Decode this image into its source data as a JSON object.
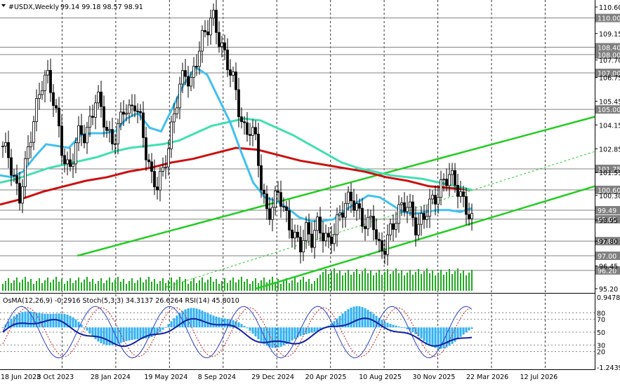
{
  "header": {
    "symbol": "#USDX,Weekly",
    "ohlc": "99.14 99.18 98.57 98.91"
  },
  "indicators_label": "OsMA(12,26,9) -0.2916  Stoch(5,3,3) 34.3137 26.6264  RSI(14) 45.8010",
  "colors": {
    "bull_body": "#ffffff",
    "bear_body": "#000000",
    "ema_fast": "#40c0f0",
    "ema_mid": "#40e0b0",
    "ema_slow": "#cc1010",
    "channel": "#22cc22",
    "volume": "#22aa22",
    "osma": "#30b0f0",
    "rsi": "#1020a0",
    "stoch": "#c02020",
    "level_line": "#808080"
  },
  "chart_data": [
    {
      "type": "candlestick",
      "title": "#USDX,Weekly",
      "ylim": [
        95.2,
        110.6
      ],
      "price_axis_ticks": [
        "110.60",
        "109.15",
        "107.70",
        "106.75",
        "105.45",
        "104.15",
        "102.85",
        "101.55",
        "100.30",
        "98.95",
        "97.80",
        "96.45",
        "95.20"
      ],
      "level_labels": [
        "110.00",
        "108.40",
        "108.00",
        "107.00",
        "105.00",
        "101.75",
        "100.60",
        "99.49",
        "99.00",
        "97.80",
        "97.00",
        "96.20"
      ],
      "x_tick_labels": [
        "18 Jun 2023",
        "8 Oct 2023",
        "28 Jan 2024",
        "19 May 2024",
        "8 Sep 2024",
        "29 Dec 2024",
        "20 Apr 2025",
        "10 Aug 2025",
        "30 Nov 2025",
        "22 Mar 2026",
        "12 Jul 2026"
      ],
      "close_path": [
        103.0,
        102.5,
        101.2,
        100.1,
        101.8,
        103.5,
        105.0,
        106.4,
        106.9,
        105.8,
        104.2,
        102.3,
        101.6,
        102.8,
        104.0,
        103.4,
        104.6,
        105.8,
        104.9,
        103.6,
        103.2,
        104.1,
        105.2,
        104.8,
        105.4,
        104.3,
        102.6,
        101.2,
        100.9,
        101.6,
        102.9,
        104.7,
        106.2,
        107.1,
        106.3,
        107.6,
        108.8,
        109.4,
        110.2,
        109.0,
        108.1,
        107.3,
        106.4,
        104.6,
        103.6,
        104.1,
        103.1,
        100.4,
        99.2,
        99.8,
        100.6,
        99.4,
        98.6,
        97.9,
        97.6,
        98.4,
        97.9,
        98.7,
        98.2,
        97.7,
        98.3,
        99.2,
        99.8,
        100.2,
        99.7,
        99.0,
        98.6,
        99.2,
        97.4,
        97.3,
        98.2,
        98.9,
        99.6,
        99.9,
        99.4,
        98.4,
        99.0,
        99.6,
        100.1,
        100.4,
        101.2,
        101.4,
        101.0,
        100.2,
        99.6,
        98.9
      ],
      "ema_fast_path": [
        101.4,
        101.3,
        101.6,
        102.4,
        103.1,
        103.0,
        102.9,
        103.6,
        103.7,
        103.7,
        103.8,
        104.5,
        104.8,
        104.0,
        103.8,
        105.1,
        106.4,
        107.3,
        106.9,
        105.6,
        104.3,
        102.6,
        101.0,
        100.2,
        100.0,
        99.6,
        99.1,
        98.9,
        98.9,
        99.0,
        99.5,
        99.9,
        100.3,
        100.2,
        99.8,
        99.4,
        99.3,
        99.4,
        99.5,
        99.5,
        99.4,
        99.6
      ],
      "ema_mid_path": [
        101.0,
        101.2,
        101.5,
        101.8,
        102.0,
        102.2,
        102.4,
        102.7,
        102.9,
        103.0,
        103.1,
        103.3,
        103.7,
        104.1,
        104.3,
        104.5,
        104.4,
        104.0,
        103.6,
        103.1,
        102.6,
        102.1,
        101.8,
        101.6,
        101.4,
        101.3,
        101.2,
        101.0,
        100.8,
        100.6
      ],
      "ema_slow_path": [
        99.8,
        100.1,
        100.5,
        100.8,
        101.1,
        101.3,
        101.6,
        101.8,
        102.1,
        102.3,
        102.6,
        102.9,
        102.8,
        102.5,
        102.2,
        102.0,
        101.8,
        101.6,
        101.3,
        101.1,
        100.8,
        100.7,
        100.6
      ],
      "channel": [
        {
          "name": "upper",
          "from": [
            97.0,
            0.13
          ],
          "to": [
            104.6,
            1.0
          ]
        },
        {
          "name": "lower",
          "from": [
            95.2,
            0.43
          ],
          "to": [
            100.8,
            1.0
          ]
        },
        {
          "name": "mid_dashed",
          "from": [
            95.3,
            0.28
          ],
          "to": [
            102.7,
            1.0
          ]
        }
      ],
      "grid": "vertical dashed at date ticks"
    },
    {
      "type": "line",
      "title": "OsMA(12,26,9) Stoch(5,3,3) RSI(14)",
      "ylim": [
        -1.2439,
        0.9478
      ],
      "axis_ticks": [
        "0.9478",
        "80",
        "70",
        "50",
        "30",
        "20",
        "-1.2439"
      ],
      "osma": -0.2916,
      "stoch_k": 34.3137,
      "stoch_d": 26.6264,
      "rsi": 45.801
    }
  ]
}
